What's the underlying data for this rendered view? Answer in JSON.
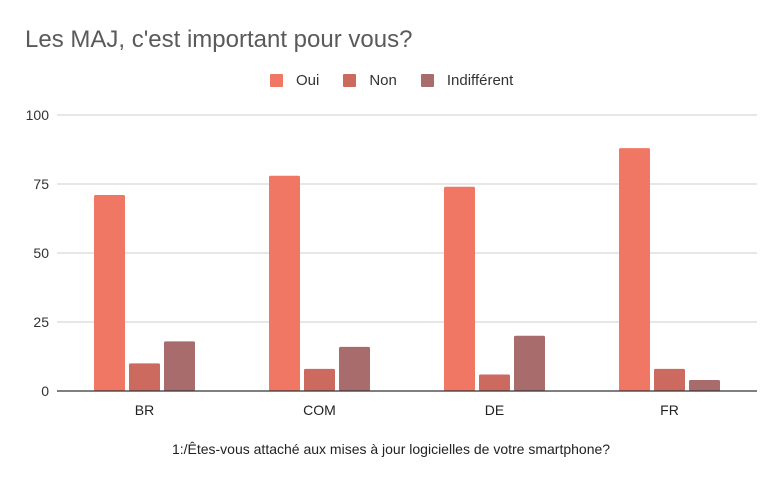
{
  "chart_data": {
    "type": "bar",
    "title": "Les MAJ, c'est important pour vous?",
    "xlabel": "1:/Êtes-vous attaché aux mises à jour logicielles de votre smartphone?",
    "ylabel": "",
    "categories": [
      "BR",
      "COM",
      "DE",
      "FR"
    ],
    "series": [
      {
        "name": "Oui",
        "color": "#f07763",
        "values": [
          71,
          78,
          74,
          88
        ]
      },
      {
        "name": "Non",
        "color": "#cc6a60",
        "values": [
          10,
          8,
          6,
          8
        ]
      },
      {
        "name": "Indifférent",
        "color": "#a86c6c",
        "values": [
          18,
          16,
          20,
          4
        ]
      }
    ],
    "ylim": [
      0,
      100
    ],
    "yticks": [
      0,
      25,
      50,
      75,
      100
    ],
    "grid": true,
    "legend_position": "top"
  }
}
